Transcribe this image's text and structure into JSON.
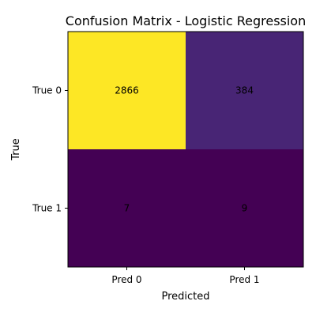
{
  "chart_data": {
    "type": "heatmap",
    "title": "Confusion Matrix - Logistic Regression",
    "xlabel": "Predicted",
    "ylabel": "True",
    "x_categories": [
      "Pred 0",
      "Pred 1"
    ],
    "y_categories": [
      "True 0",
      "True 1"
    ],
    "values": [
      [
        2866,
        384
      ],
      [
        7,
        9
      ]
    ],
    "colormap": "viridis",
    "color_low": "#440154",
    "color_high": "#fde725"
  }
}
